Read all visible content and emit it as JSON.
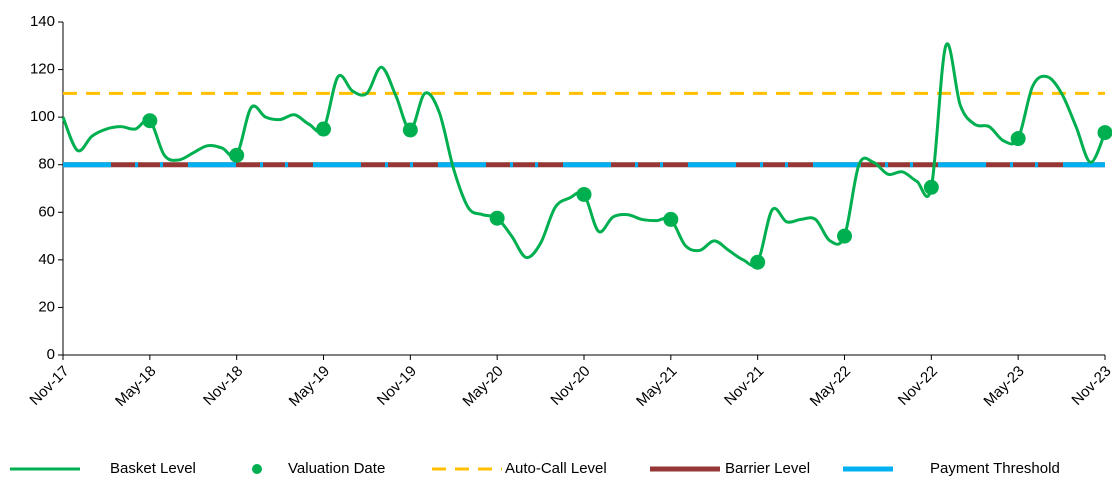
{
  "chart_data": {
    "type": "line",
    "categories": [
      "Nov-17",
      "Dec-17",
      "Jan-18",
      "Feb-18",
      "Mar-18",
      "Apr-18",
      "May-18",
      "Jun-18",
      "Jul-18",
      "Aug-18",
      "Sep-18",
      "Oct-18",
      "Nov-18",
      "Dec-18",
      "Jan-19",
      "Feb-19",
      "Mar-19",
      "Apr-19",
      "May-19",
      "Jun-19",
      "Jul-19",
      "Aug-19",
      "Sep-19",
      "Oct-19",
      "Nov-19",
      "Dec-19",
      "Jan-20",
      "Feb-20",
      "Mar-20",
      "Apr-20",
      "May-20",
      "Jun-20",
      "Jul-20",
      "Aug-20",
      "Sep-20",
      "Oct-20",
      "Nov-20",
      "Dec-20",
      "Jan-21",
      "Feb-21",
      "Mar-21",
      "Apr-21",
      "May-21",
      "Jun-21",
      "Jul-21",
      "Aug-21",
      "Sep-21",
      "Oct-21",
      "Nov-21",
      "Dec-21",
      "Jan-22",
      "Feb-22",
      "Mar-22",
      "Apr-22",
      "May-22",
      "Jun-22",
      "Jul-22",
      "Aug-22",
      "Sep-22",
      "Oct-22",
      "Nov-22",
      "Dec-22",
      "Jan-23",
      "Feb-23",
      "Mar-23",
      "Apr-23",
      "May-23",
      "Jun-23",
      "Jul-23",
      "Aug-23",
      "Sep-23",
      "Oct-23",
      "Nov-23"
    ],
    "xticks": [
      "Nov-17",
      "May-18",
      "Nov-18",
      "May-19",
      "Nov-19",
      "May-20",
      "Nov-20",
      "May-21",
      "Nov-21",
      "May-22",
      "Nov-22",
      "May-23",
      "Nov-23"
    ],
    "ylim": [
      0,
      140
    ],
    "yticks": [
      0,
      20,
      40,
      60,
      80,
      100,
      120,
      140
    ],
    "grid": false,
    "legend": "bottom",
    "series": [
      {
        "name": "Basket Level",
        "color": "#00b050",
        "style": "line",
        "values": [
          100,
          86,
          92,
          95,
          96,
          95,
          98.5,
          84,
          82,
          85,
          88,
          87,
          84,
          104,
          100,
          99,
          101,
          97,
          95,
          117,
          111,
          110,
          121,
          109,
          94.6,
          110,
          102,
          78,
          62,
          59,
          57.5,
          50,
          41,
          47,
          62,
          66,
          67.5,
          52,
          58,
          59,
          57,
          56.5,
          57,
          46,
          44,
          48,
          44,
          40,
          39,
          61,
          56,
          57,
          57,
          48,
          50,
          80,
          81,
          76,
          77,
          73,
          70.5,
          130,
          105,
          97,
          96,
          90,
          91,
          113,
          117,
          110,
          96,
          81,
          93.5
        ]
      },
      {
        "name": "Valuation Date",
        "color": "#00b050",
        "style": "marker",
        "values": [
          null,
          null,
          null,
          null,
          null,
          null,
          98.5,
          null,
          null,
          null,
          null,
          null,
          84,
          null,
          null,
          null,
          null,
          null,
          95,
          null,
          null,
          null,
          null,
          null,
          94.6,
          null,
          null,
          null,
          null,
          null,
          57.5,
          null,
          null,
          null,
          null,
          null,
          67.5,
          null,
          null,
          null,
          null,
          null,
          57,
          null,
          null,
          null,
          null,
          null,
          39,
          null,
          null,
          null,
          null,
          null,
          50,
          null,
          null,
          null,
          null,
          null,
          70.5,
          null,
          null,
          null,
          null,
          null,
          91,
          null,
          null,
          null,
          null,
          null,
          93.5
        ]
      },
      {
        "name": "Auto-Call Level",
        "color": "#ffc000",
        "style": "dashed",
        "values": [
          110,
          110,
          110,
          110,
          110,
          110,
          110,
          110,
          110,
          110,
          110,
          110,
          110,
          110,
          110,
          110,
          110,
          110,
          110,
          110,
          110,
          110,
          110,
          110,
          110,
          110,
          110,
          110,
          110,
          110,
          110,
          110,
          110,
          110,
          110,
          110,
          110,
          110,
          110,
          110,
          110,
          110,
          110,
          110,
          110,
          110,
          110,
          110,
          110,
          110,
          110,
          110,
          110,
          110,
          110,
          110,
          110,
          110,
          110,
          110,
          110,
          110,
          110,
          110,
          110,
          110,
          110,
          110,
          110,
          110,
          110,
          110,
          110
        ]
      },
      {
        "name": "Barrier Level",
        "color": "#953735",
        "style": "thick",
        "values": [
          80,
          80,
          80,
          80,
          80,
          80,
          80,
          80,
          80,
          80,
          80,
          80,
          80,
          80,
          80,
          80,
          80,
          80,
          80,
          80,
          80,
          80,
          80,
          80,
          80,
          80,
          80,
          80,
          80,
          80,
          80,
          80,
          80,
          80,
          80,
          80,
          80,
          80,
          80,
          80,
          80,
          80,
          80,
          80,
          80,
          80,
          80,
          80,
          80,
          80,
          80,
          80,
          80,
          80,
          80,
          80,
          80,
          80,
          80,
          80,
          80,
          80,
          80,
          80,
          80,
          80,
          80,
          80,
          80,
          80,
          80,
          80,
          80
        ]
      },
      {
        "name": "Payment Threshold",
        "color": "#00b0f0",
        "style": "dashdot",
        "values": [
          80,
          80,
          80,
          80,
          80,
          80,
          80,
          80,
          80,
          80,
          80,
          80,
          80,
          80,
          80,
          80,
          80,
          80,
          80,
          80,
          80,
          80,
          80,
          80,
          80,
          80,
          80,
          80,
          80,
          80,
          80,
          80,
          80,
          80,
          80,
          80,
          80,
          80,
          80,
          80,
          80,
          80,
          80,
          80,
          80,
          80,
          80,
          80,
          80,
          80,
          80,
          80,
          80,
          80,
          80,
          80,
          80,
          80,
          80,
          80,
          80,
          80,
          80,
          80,
          80,
          80,
          80,
          80,
          80,
          80,
          80,
          80,
          80
        ]
      }
    ]
  }
}
